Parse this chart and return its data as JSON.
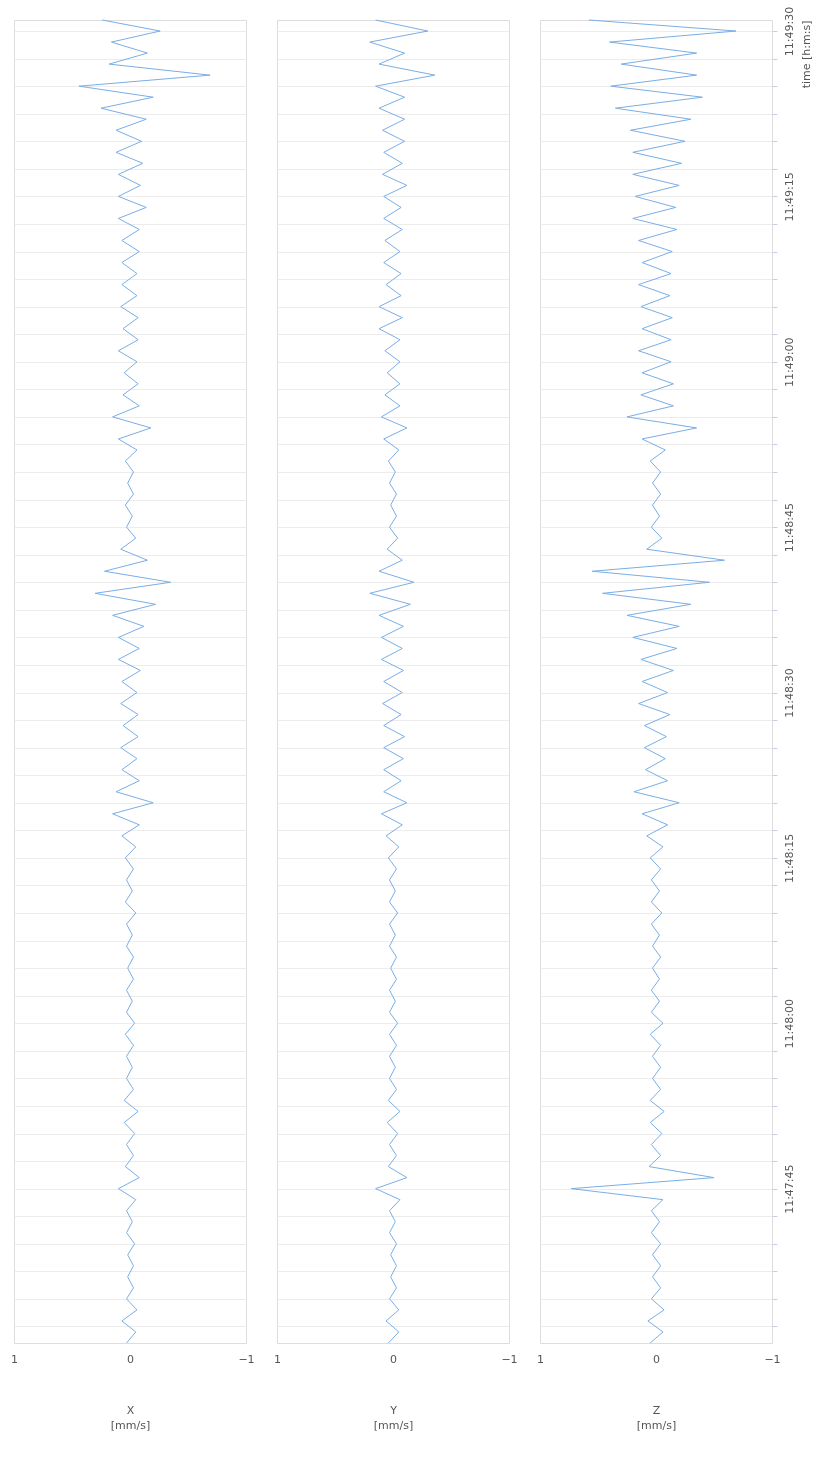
{
  "chart_data": [
    {
      "type": "line",
      "xlabel": "X [mm/s]",
      "xlim": [
        1,
        -1
      ],
      "xticks": [
        1,
        0,
        -1
      ],
      "grid": "y",
      "tick_labels": "x",
      "ylim": [
        11.791944,
        11.825278
      ],
      "yticks": [
        {
          "value": 11.792361,
          "label": null
        },
        {
          "value": 11.793056,
          "label": null
        },
        {
          "value": 11.79375,
          "label": null
        },
        {
          "value": 11.794444,
          "label": null
        },
        {
          "value": 11.795139,
          "label": null
        },
        {
          "value": 11.795833,
          "label": null
        },
        {
          "value": 11.796528,
          "label": null
        },
        {
          "value": 11.797222,
          "label": null
        },
        {
          "value": 11.797917,
          "label": null
        },
        {
          "value": 11.798611,
          "label": null
        },
        {
          "value": 11.799306,
          "label": null
        },
        {
          "value": 11.8,
          "label": null
        },
        {
          "value": 11.800694,
          "label": null
        },
        {
          "value": 11.801389,
          "label": null
        },
        {
          "value": 11.802083,
          "label": null
        },
        {
          "value": 11.802778,
          "label": null
        },
        {
          "value": 11.803472,
          "label": null
        },
        {
          "value": 11.804167,
          "label": null
        },
        {
          "value": 11.804861,
          "label": null
        },
        {
          "value": 11.805556,
          "label": null
        },
        {
          "value": 11.80625,
          "label": null
        },
        {
          "value": 11.806944,
          "label": null
        },
        {
          "value": 11.807639,
          "label": null
        },
        {
          "value": 11.808333,
          "label": null
        },
        {
          "value": 11.809028,
          "label": null
        },
        {
          "value": 11.809722,
          "label": null
        },
        {
          "value": 11.810417,
          "label": null
        },
        {
          "value": 11.811111,
          "label": null
        },
        {
          "value": 11.811806,
          "label": null
        },
        {
          "value": 11.8125,
          "label": null
        },
        {
          "value": 11.813194,
          "label": null
        },
        {
          "value": 11.813889,
          "label": null
        },
        {
          "value": 11.814583,
          "label": null
        },
        {
          "value": 11.815278,
          "label": null
        },
        {
          "value": 11.815972,
          "label": null
        },
        {
          "value": 11.816667,
          "label": null
        },
        {
          "value": 11.817361,
          "label": null
        },
        {
          "value": 11.818056,
          "label": null
        },
        {
          "value": 11.81875,
          "label": null
        },
        {
          "value": 11.819444,
          "label": null
        },
        {
          "value": 11.820139,
          "label": null
        },
        {
          "value": 11.820833,
          "label": null
        },
        {
          "value": 11.821528,
          "label": null
        },
        {
          "value": 11.822222,
          "label": null
        },
        {
          "value": 11.822917,
          "label": null
        },
        {
          "value": 11.823611,
          "label": null
        },
        {
          "value": 11.824306,
          "label": null
        },
        {
          "value": 11.825,
          "label": null
        }
      ],
      "series": [
        {
          "color": "#7aaee6",
          "x": [
            0.03,
            -0.05,
            0.07,
            -0.06,
            0.03,
            -0.03,
            0.02,
            -0.03,
            0.02,
            -0.04,
            0.03,
            -0.02,
            0.03,
            -0.05,
            0.1,
            -0.08,
            0.04,
            -0.03,
            0.03,
            -0.04,
            0.05,
            -0.07,
            0.05,
            -0.03,
            0.03,
            -0.02,
            0.03,
            -0.03,
            0.04,
            -0.04,
            0.03,
            -0.02,
            0.03,
            -0.03,
            0.02,
            -0.03,
            0.03,
            -0.02,
            0.03,
            -0.05,
            0.04,
            -0.02,
            0.03,
            -0.03,
            0.04,
            -0.05,
            0.07,
            -0.08,
            0.15,
            -0.2,
            0.12,
            -0.08,
            0.07,
            -0.06,
            0.08,
            -0.07,
            0.06,
            -0.07,
            0.08,
            -0.06,
            0.07,
            -0.09,
            0.1,
            -0.08,
            0.1,
            -0.12,
            0.15,
            -0.22,
            0.3,
            -0.35,
            0.22,
            -0.15,
            0.08,
            -0.05,
            0.03,
            -0.02,
            0.04,
            -0.03,
            0.02,
            -0.03,
            0.04,
            -0.06,
            0.1,
            -0.18,
            0.15,
            -0.08,
            0.06,
            -0.07,
            0.05,
            -0.06,
            0.1,
            -0.07,
            0.06,
            -0.07,
            0.08,
            -0.06,
            0.07,
            -0.06,
            0.07,
            -0.08,
            0.07,
            -0.08,
            0.1,
            -0.14,
            0.1,
            -0.09,
            0.1,
            -0.11,
            0.12,
            -0.1,
            0.12,
            -0.14,
            0.25,
            -0.2,
            0.44,
            -0.69,
            0.18,
            -0.15,
            0.16,
            -0.26,
            0.24
          ],
          "values": [
            11.791944,
            11.792222,
            11.7925,
            11.792778,
            11.793056,
            11.793333,
            11.793611,
            11.793889,
            11.794167,
            11.794444,
            11.794722,
            11.795,
            11.795278,
            11.795556,
            11.795833,
            11.796111,
            11.796389,
            11.796667,
            11.796944,
            11.797222,
            11.7975,
            11.797778,
            11.798056,
            11.798333,
            11.798611,
            11.798889,
            11.799167,
            11.799444,
            11.799722,
            11.8,
            11.800278,
            11.800556,
            11.800833,
            11.801111,
            11.801389,
            11.801667,
            11.801944,
            11.802222,
            11.8025,
            11.802778,
            11.803056,
            11.803333,
            11.803611,
            11.803889,
            11.804167,
            11.804444,
            11.804722,
            11.805,
            11.805278,
            11.805556,
            11.805833,
            11.806111,
            11.806389,
            11.806667,
            11.806944,
            11.807222,
            11.8075,
            11.807778,
            11.808056,
            11.808333,
            11.808611,
            11.808889,
            11.809167,
            11.809444,
            11.809722,
            11.81,
            11.810278,
            11.810556,
            11.810833,
            11.811111,
            11.811389,
            11.811667,
            11.811944,
            11.812222,
            11.8125,
            11.812778,
            11.813056,
            11.813333,
            11.813611,
            11.813889,
            11.814167,
            11.814444,
            11.814722,
            11.815,
            11.815278,
            11.815556,
            11.815833,
            11.816111,
            11.816389,
            11.816667,
            11.816944,
            11.817222,
            11.8175,
            11.817778,
            11.818056,
            11.818333,
            11.818611,
            11.818889,
            11.819167,
            11.819444,
            11.819722,
            11.82,
            11.820278,
            11.820556,
            11.820833,
            11.821111,
            11.821389,
            11.821667,
            11.821944,
            11.822222,
            11.8225,
            11.822778,
            11.823056,
            11.823333,
            11.823611,
            11.823889,
            11.824167,
            11.824444,
            11.824722,
            11.825,
            11.825278
          ]
        }
      ]
    },
    {
      "type": "line",
      "xlabel": "Y [mm/s]",
      "xlim": [
        1,
        -1
      ],
      "xticks": [
        1,
        0,
        -1
      ],
      "grid": "y",
      "tick_labels": "x",
      "ylim": [
        11.791944,
        11.825278
      ],
      "yticks": [
        {
          "value": 11.792361,
          "label": null
        },
        {
          "value": 11.793056,
          "label": null
        },
        {
          "value": 11.79375,
          "label": null
        },
        {
          "value": 11.794444,
          "label": null
        },
        {
          "value": 11.795139,
          "label": null
        },
        {
          "value": 11.795833,
          "label": null
        },
        {
          "value": 11.796528,
          "label": null
        },
        {
          "value": 11.797222,
          "label": null
        },
        {
          "value": 11.797917,
          "label": null
        },
        {
          "value": 11.798611,
          "label": null
        },
        {
          "value": 11.799306,
          "label": null
        },
        {
          "value": 11.8,
          "label": null
        },
        {
          "value": 11.800694,
          "label": null
        },
        {
          "value": 11.801389,
          "label": null
        },
        {
          "value": 11.802083,
          "label": null
        },
        {
          "value": 11.802778,
          "label": null
        },
        {
          "value": 11.803472,
          "label": null
        },
        {
          "value": 11.804167,
          "label": null
        },
        {
          "value": 11.804861,
          "label": null
        },
        {
          "value": 11.805556,
          "label": null
        },
        {
          "value": 11.80625,
          "label": null
        },
        {
          "value": 11.806944,
          "label": null
        },
        {
          "value": 11.807639,
          "label": null
        },
        {
          "value": 11.808333,
          "label": null
        },
        {
          "value": 11.809028,
          "label": null
        },
        {
          "value": 11.809722,
          "label": null
        },
        {
          "value": 11.810417,
          "label": null
        },
        {
          "value": 11.811111,
          "label": null
        },
        {
          "value": 11.811806,
          "label": null
        },
        {
          "value": 11.8125,
          "label": null
        },
        {
          "value": 11.813194,
          "label": null
        },
        {
          "value": 11.813889,
          "label": null
        },
        {
          "value": 11.814583,
          "label": null
        },
        {
          "value": 11.815278,
          "label": null
        },
        {
          "value": 11.815972,
          "label": null
        },
        {
          "value": 11.816667,
          "label": null
        },
        {
          "value": 11.817361,
          "label": null
        },
        {
          "value": 11.818056,
          "label": null
        },
        {
          "value": 11.81875,
          "label": null
        },
        {
          "value": 11.819444,
          "label": null
        },
        {
          "value": 11.820139,
          "label": null
        },
        {
          "value": 11.820833,
          "label": null
        },
        {
          "value": 11.821528,
          "label": null
        },
        {
          "value": 11.822222,
          "label": null
        },
        {
          "value": 11.822917,
          "label": null
        },
        {
          "value": 11.823611,
          "label": null
        },
        {
          "value": 11.824306,
          "label": null
        },
        {
          "value": 11.825,
          "label": null
        }
      ],
      "series": [
        {
          "color": "#7aaee6",
          "x": [
            0.04,
            -0.05,
            0.06,
            -0.05,
            0.03,
            -0.03,
            0.02,
            -0.03,
            0.02,
            -0.03,
            0.03,
            -0.02,
            0.03,
            -0.06,
            0.15,
            -0.12,
            0.04,
            -0.03,
            0.03,
            -0.04,
            0.05,
            -0.06,
            0.04,
            -0.03,
            0.03,
            -0.02,
            0.03,
            -0.03,
            0.03,
            -0.04,
            0.03,
            -0.02,
            0.03,
            -0.03,
            0.02,
            -0.03,
            0.03,
            -0.02,
            0.03,
            -0.04,
            0.03,
            -0.02,
            0.03,
            -0.03,
            0.04,
            -0.05,
            0.06,
            -0.08,
            0.1,
            -0.12,
            0.08,
            -0.07,
            0.08,
            -0.09,
            0.08,
            -0.1,
            0.08,
            -0.07,
            0.09,
            -0.08,
            0.08,
            -0.09,
            0.1,
            -0.08,
            0.1,
            -0.09,
            0.12,
            -0.15,
            0.2,
            -0.18,
            0.12,
            -0.08,
            0.05,
            -0.04,
            0.03,
            -0.03,
            0.02,
            -0.03,
            0.03,
            -0.02,
            0.04,
            -0.05,
            0.08,
            -0.12,
            0.1,
            -0.06,
            0.07,
            -0.06,
            0.05,
            -0.06,
            0.07,
            -0.06,
            0.12,
            -0.08,
            0.12,
            -0.07,
            0.06,
            -0.07,
            0.08,
            -0.06,
            0.07,
            -0.08,
            0.08,
            -0.07,
            0.08,
            -0.12,
            0.09,
            -0.08,
            0.08,
            -0.1,
            0.09,
            -0.1,
            0.12,
            -0.1,
            0.15,
            -0.36,
            0.12,
            -0.1,
            0.2,
            -0.3,
            0.15
          ],
          "values": [
            11.791944,
            11.792222,
            11.7925,
            11.792778,
            11.793056,
            11.793333,
            11.793611,
            11.793889,
            11.794167,
            11.794444,
            11.794722,
            11.795,
            11.795278,
            11.795556,
            11.795833,
            11.796111,
            11.796389,
            11.796667,
            11.796944,
            11.797222,
            11.7975,
            11.797778,
            11.798056,
            11.798333,
            11.798611,
            11.798889,
            11.799167,
            11.799444,
            11.799722,
            11.8,
            11.800278,
            11.800556,
            11.800833,
            11.801111,
            11.801389,
            11.801667,
            11.801944,
            11.802222,
            11.8025,
            11.802778,
            11.803056,
            11.803333,
            11.803611,
            11.803889,
            11.804167,
            11.804444,
            11.804722,
            11.805,
            11.805278,
            11.805556,
            11.805833,
            11.806111,
            11.806389,
            11.806667,
            11.806944,
            11.807222,
            11.8075,
            11.807778,
            11.808056,
            11.808333,
            11.808611,
            11.808889,
            11.809167,
            11.809444,
            11.809722,
            11.81,
            11.810278,
            11.810556,
            11.810833,
            11.811111,
            11.811389,
            11.811667,
            11.811944,
            11.812222,
            11.8125,
            11.812778,
            11.813056,
            11.813333,
            11.813611,
            11.813889,
            11.814167,
            11.814444,
            11.814722,
            11.815,
            11.815278,
            11.815556,
            11.815833,
            11.816111,
            11.816389,
            11.816667,
            11.816944,
            11.817222,
            11.8175,
            11.817778,
            11.818056,
            11.818333,
            11.818611,
            11.818889,
            11.819167,
            11.819444,
            11.819722,
            11.82,
            11.820278,
            11.820556,
            11.820833,
            11.821111,
            11.821389,
            11.821667,
            11.821944,
            11.822222,
            11.8225,
            11.822778,
            11.823056,
            11.823333,
            11.823611,
            11.823889,
            11.824167,
            11.824444,
            11.824722,
            11.825,
            11.825278
          ]
        }
      ]
    },
    {
      "type": "line",
      "xlabel": "Z [mm/s]",
      "ylabel": "time [h:m:s]",
      "xlim": [
        1,
        -1
      ],
      "xticks": [
        1,
        0,
        -1
      ],
      "grid": "y",
      "ylim": [
        11.791944,
        11.825278
      ],
      "yticks": [
        {
          "value": 11.792361,
          "label": null
        },
        {
          "value": 11.793056,
          "label": null
        },
        {
          "value": 11.79375,
          "label": null
        },
        {
          "value": 11.794444,
          "label": null
        },
        {
          "value": 11.795139,
          "label": null
        },
        {
          "value": 11.795833,
          "label": "11:47:45"
        },
        {
          "value": 11.796528,
          "label": null
        },
        {
          "value": 11.797222,
          "label": null
        },
        {
          "value": 11.797917,
          "label": null
        },
        {
          "value": 11.798611,
          "label": null
        },
        {
          "value": 11.799306,
          "label": null
        },
        {
          "value": 11.8,
          "label": "11:48:00"
        },
        {
          "value": 11.800694,
          "label": null
        },
        {
          "value": 11.801389,
          "label": null
        },
        {
          "value": 11.802083,
          "label": null
        },
        {
          "value": 11.802778,
          "label": null
        },
        {
          "value": 11.803472,
          "label": null
        },
        {
          "value": 11.804167,
          "label": "11:48:15"
        },
        {
          "value": 11.804861,
          "label": null
        },
        {
          "value": 11.805556,
          "label": null
        },
        {
          "value": 11.80625,
          "label": null
        },
        {
          "value": 11.806944,
          "label": null
        },
        {
          "value": 11.807639,
          "label": null
        },
        {
          "value": 11.808333,
          "label": "11:48:30"
        },
        {
          "value": 11.809028,
          "label": null
        },
        {
          "value": 11.809722,
          "label": null
        },
        {
          "value": 11.810417,
          "label": null
        },
        {
          "value": 11.811111,
          "label": null
        },
        {
          "value": 11.811806,
          "label": null
        },
        {
          "value": 11.8125,
          "label": "11:48:45"
        },
        {
          "value": 11.813194,
          "label": null
        },
        {
          "value": 11.813889,
          "label": null
        },
        {
          "value": 11.814583,
          "label": null
        },
        {
          "value": 11.815278,
          "label": null
        },
        {
          "value": 11.815972,
          "label": null
        },
        {
          "value": 11.816667,
          "label": "11:49:00"
        },
        {
          "value": 11.817361,
          "label": null
        },
        {
          "value": 11.818056,
          "label": null
        },
        {
          "value": 11.81875,
          "label": null
        },
        {
          "value": 11.819444,
          "label": null
        },
        {
          "value": 11.820139,
          "label": null
        },
        {
          "value": 11.820833,
          "label": "11:49:15"
        },
        {
          "value": 11.821528,
          "label": null
        },
        {
          "value": 11.822222,
          "label": null
        },
        {
          "value": 11.822917,
          "label": null
        },
        {
          "value": 11.823611,
          "label": null
        },
        {
          "value": 11.824306,
          "label": null
        },
        {
          "value": 11.825,
          "label": "11:49:30"
        }
      ],
      "series": [
        {
          "color": "#7aaee6",
          "x": [
            0.05,
            -0.06,
            0.07,
            -0.07,
            0.04,
            -0.04,
            0.03,
            -0.04,
            0.03,
            -0.04,
            0.04,
            -0.03,
            0.04,
            -0.06,
            0.73,
            -0.5,
            0.06,
            -0.04,
            0.04,
            -0.05,
            0.05,
            -0.07,
            0.05,
            -0.04,
            0.03,
            -0.04,
            0.03,
            -0.04,
            0.05,
            -0.06,
            0.04,
            -0.03,
            0.04,
            -0.03,
            0.03,
            -0.04,
            0.03,
            -0.03,
            0.04,
            -0.05,
            0.04,
            -0.03,
            0.04,
            -0.04,
            0.05,
            -0.06,
            0.08,
            -0.1,
            0.12,
            -0.2,
            0.19,
            -0.1,
            0.09,
            -0.08,
            0.1,
            -0.09,
            0.1,
            -0.12,
            0.15,
            -0.1,
            0.12,
            -0.15,
            0.13,
            -0.18,
            0.2,
            -0.2,
            0.25,
            -0.3,
            0.46,
            -0.46,
            0.55,
            -0.59,
            0.08,
            -0.05,
            0.04,
            -0.03,
            0.03,
            -0.04,
            0.03,
            -0.04,
            0.05,
            -0.08,
            0.12,
            -0.35,
            0.25,
            -0.15,
            0.13,
            -0.15,
            0.12,
            -0.13,
            0.15,
            -0.13,
            0.12,
            -0.14,
            0.13,
            -0.12,
            0.15,
            -0.13,
            0.12,
            -0.14,
            0.15,
            -0.18,
            0.2,
            -0.17,
            0.18,
            -0.2,
            0.2,
            -0.22,
            0.2,
            -0.25,
            0.22,
            -0.3,
            0.35,
            -0.4,
            0.39,
            -0.35,
            0.3,
            -0.35,
            0.4,
            -0.69,
            0.58
          ],
          "values": [
            11.791944,
            11.792222,
            11.7925,
            11.792778,
            11.793056,
            11.793333,
            11.793611,
            11.793889,
            11.794167,
            11.794444,
            11.794722,
            11.795,
            11.795278,
            11.795556,
            11.795833,
            11.796111,
            11.796389,
            11.796667,
            11.796944,
            11.797222,
            11.7975,
            11.797778,
            11.798056,
            11.798333,
            11.798611,
            11.798889,
            11.799167,
            11.799444,
            11.799722,
            11.8,
            11.800278,
            11.800556,
            11.800833,
            11.801111,
            11.801389,
            11.801667,
            11.801944,
            11.802222,
            11.8025,
            11.802778,
            11.803056,
            11.803333,
            11.803611,
            11.803889,
            11.804167,
            11.804444,
            11.804722,
            11.805,
            11.805278,
            11.805556,
            11.805833,
            11.806111,
            11.806389,
            11.806667,
            11.806944,
            11.807222,
            11.8075,
            11.807778,
            11.808056,
            11.808333,
            11.808611,
            11.808889,
            11.809167,
            11.809444,
            11.809722,
            11.81,
            11.810278,
            11.810556,
            11.810833,
            11.811111,
            11.811389,
            11.811667,
            11.811944,
            11.812222,
            11.8125,
            11.812778,
            11.813056,
            11.813333,
            11.813611,
            11.813889,
            11.814167,
            11.814444,
            11.814722,
            11.815,
            11.815278,
            11.815556,
            11.815833,
            11.816111,
            11.816389,
            11.816667,
            11.816944,
            11.817222,
            11.8175,
            11.817778,
            11.818056,
            11.818333,
            11.818611,
            11.818889,
            11.819167,
            11.819444,
            11.819722,
            11.82,
            11.820278,
            11.820556,
            11.820833,
            11.821111,
            11.821389,
            11.821667,
            11.821944,
            11.822222,
            11.8225,
            11.822778,
            11.823056,
            11.823333,
            11.823611,
            11.823889,
            11.824167,
            11.824444,
            11.824722,
            11.825,
            11.825278
          ]
        }
      ]
    }
  ]
}
